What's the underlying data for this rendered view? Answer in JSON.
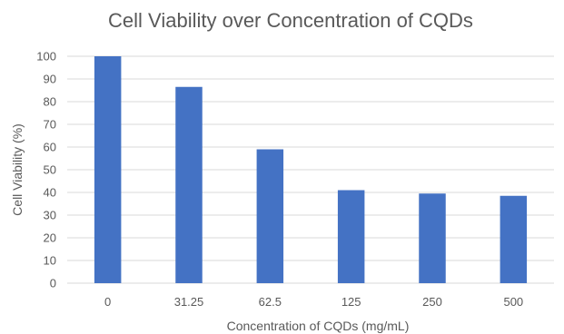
{
  "chart_data": {
    "type": "bar",
    "title": "Cell Viability over Concentration of CQDs",
    "xlabel": "Concentration of CQDs (mg/mL)",
    "ylabel": "Cell Viability (%)",
    "categories": [
      "0",
      "31.25",
      "62.5",
      "125",
      "250",
      "500"
    ],
    "values": [
      100,
      86.5,
      59,
      41,
      39.5,
      38.5
    ],
    "ylim": [
      0,
      100
    ],
    "ytick_step": 10,
    "yticks": [
      "0",
      "10",
      "20",
      "30",
      "40",
      "50",
      "60",
      "70",
      "80",
      "90",
      "100"
    ],
    "grid": true,
    "legend": "none",
    "bar_color": "#4472c4"
  }
}
